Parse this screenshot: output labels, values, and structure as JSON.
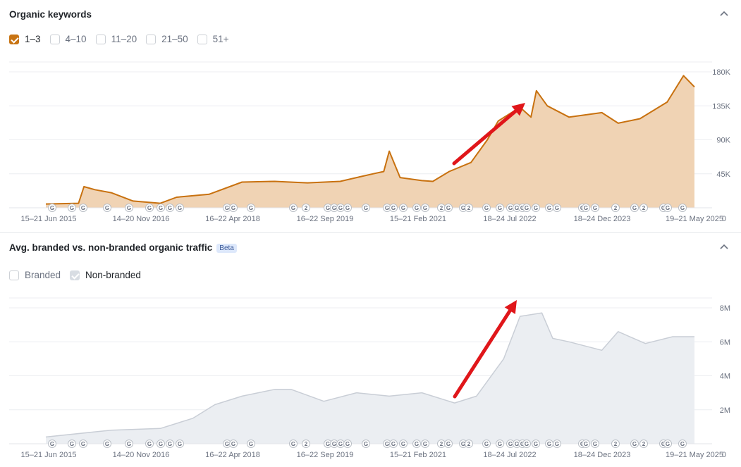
{
  "panels": [
    {
      "title": "Organic keywords",
      "badge": "",
      "filters": [
        {
          "label": "1–3",
          "checked": true
        },
        {
          "label": "4–10",
          "checked": false
        },
        {
          "label": "11–20",
          "checked": false
        },
        {
          "label": "21–50",
          "checked": false
        },
        {
          "label": "51+",
          "checked": false
        }
      ]
    },
    {
      "title": "Avg. branded vs. non-branded organic traffic",
      "badge": "Beta",
      "filters": [
        {
          "label": "Branded",
          "checked": false
        },
        {
          "label": "Non-branded",
          "checked": true
        }
      ]
    }
  ],
  "icons": {
    "collapse": "chevron-up-icon",
    "annotation_marker": "google-update-marker-icon",
    "trend_arrow": "red-arrow-annotation"
  },
  "colors": {
    "keywords_line": "#c8710f",
    "keywords_fill": "#f0d3b4",
    "traffic_line": "#c9ced6",
    "traffic_fill": "#ebeef2",
    "arrow": "#e0161a",
    "checkbox_orange": "#c87413"
  },
  "chart_data": [
    {
      "type": "area",
      "title": "Organic keywords",
      "series_name": "1–3",
      "x_tick_labels": [
        "15–21 Jun 2015",
        "14–20 Nov 2016",
        "16–22 Apr 2018",
        "16–22 Sep 2019",
        "15–21 Feb 2021",
        "18–24 Jul 2022",
        "18–24 Dec 2023",
        "19–21 May 2025"
      ],
      "y_tick_labels": [
        "180K",
        "135K",
        "90K",
        "45K",
        "0"
      ],
      "ylim": [
        0,
        180000
      ],
      "points": [
        [
          "2015-06",
          5000
        ],
        [
          "2015-12",
          6000
        ],
        [
          "2016-01",
          28000
        ],
        [
          "2016-03",
          24000
        ],
        [
          "2016-06",
          20000
        ],
        [
          "2016-10",
          9000
        ],
        [
          "2017-03",
          6000
        ],
        [
          "2017-06",
          14000
        ],
        [
          "2017-12",
          18000
        ],
        [
          "2018-06",
          34000
        ],
        [
          "2018-12",
          35000
        ],
        [
          "2019-06",
          33000
        ],
        [
          "2019-12",
          35000
        ],
        [
          "2020-03",
          40000
        ],
        [
          "2020-06",
          45000
        ],
        [
          "2020-08",
          48000
        ],
        [
          "2020-09",
          75000
        ],
        [
          "2020-11",
          40000
        ],
        [
          "2021-03",
          36000
        ],
        [
          "2021-05",
          35000
        ],
        [
          "2021-08",
          48000
        ],
        [
          "2021-12",
          60000
        ],
        [
          "2022-03",
          90000
        ],
        [
          "2022-05",
          115000
        ],
        [
          "2022-09",
          133000
        ],
        [
          "2022-11",
          120000
        ],
        [
          "2022-12",
          155000
        ],
        [
          "2023-02",
          135000
        ],
        [
          "2023-06",
          120000
        ],
        [
          "2023-12",
          126000
        ],
        [
          "2024-03",
          112000
        ],
        [
          "2024-07",
          118000
        ],
        [
          "2024-12",
          140000
        ],
        [
          "2025-03",
          175000
        ],
        [
          "2025-05",
          160000
        ]
      ],
      "annotations": [
        "G",
        "2"
      ]
    },
    {
      "type": "area",
      "title": "Avg. branded vs. non-branded organic traffic",
      "series_name": "Non-branded",
      "x_tick_labels": [
        "15–21 Jun 2015",
        "14–20 Nov 2016",
        "16–22 Apr 2018",
        "16–22 Sep 2019",
        "15–21 Feb 2021",
        "18–24 Jul 2022",
        "18–24 Dec 2023",
        "19–21 May 2025"
      ],
      "y_tick_labels": [
        "8M",
        "6M",
        "4M",
        "2M",
        "0"
      ],
      "ylim": [
        0,
        8000000
      ],
      "points": [
        [
          "2015-06",
          400000
        ],
        [
          "2016-06",
          800000
        ],
        [
          "2017-03",
          900000
        ],
        [
          "2017-09",
          1500000
        ],
        [
          "2018-01",
          2300000
        ],
        [
          "2018-06",
          2800000
        ],
        [
          "2018-12",
          3200000
        ],
        [
          "2019-03",
          3200000
        ],
        [
          "2019-09",
          2500000
        ],
        [
          "2020-03",
          3000000
        ],
        [
          "2020-09",
          2800000
        ],
        [
          "2021-03",
          3000000
        ],
        [
          "2021-09",
          2400000
        ],
        [
          "2022-01",
          2800000
        ],
        [
          "2022-06",
          5000000
        ],
        [
          "2022-09",
          7500000
        ],
        [
          "2023-01",
          7700000
        ],
        [
          "2023-03",
          6200000
        ],
        [
          "2023-06",
          6000000
        ],
        [
          "2023-12",
          5500000
        ],
        [
          "2024-03",
          6600000
        ],
        [
          "2024-08",
          5900000
        ],
        [
          "2025-01",
          6300000
        ],
        [
          "2025-05",
          6300000
        ]
      ],
      "annotations": [
        "G",
        "2"
      ]
    }
  ]
}
